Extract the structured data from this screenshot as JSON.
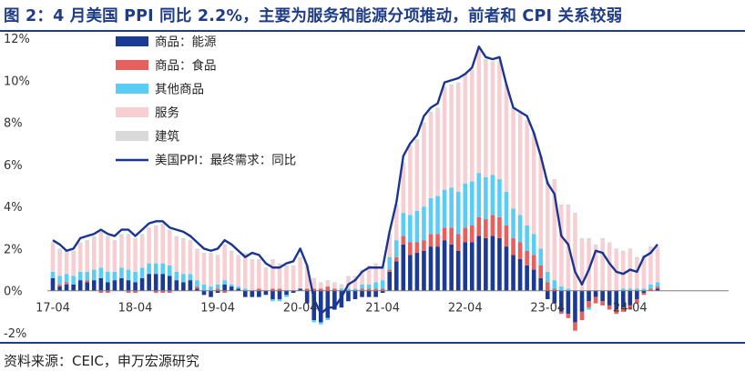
{
  "header": {
    "title": "图 2：4 月美国 PPI 同比 2.2%，主要为服务和能源分项推动，前者和 CPI 关系较弱"
  },
  "footer": {
    "source": "资料来源：CEIC，申万宏源研究"
  },
  "chart_data": {
    "type": "bar",
    "stacked": true,
    "title": "图 2：4 月美国 PPI 同比 2.2%，主要为服务和能源分项推动，前者和 CPI 关系较弱",
    "ylim": [
      -2,
      12
    ],
    "yticks": [
      "-2%",
      "0%",
      "2%",
      "4%",
      "6%",
      "8%",
      "10%",
      "12%"
    ],
    "yunit": "%",
    "xtick_labels": [
      "17-04",
      "18-04",
      "19-04",
      "20-04",
      "21-04",
      "22-04",
      "23-04",
      "24-04"
    ],
    "legend_position": "top-left",
    "colors": {
      "energy": "#1a3a96",
      "food": "#e8605e",
      "other_goods": "#5bcdf5",
      "services": "#f7cfd3",
      "construction": "#d9d9d9",
      "ppi_line": "#1a3491"
    },
    "series_names": {
      "energy": "商品：能源",
      "food": "商品：食品",
      "other_goods": "其他商品",
      "services": "服务",
      "construction": "建筑",
      "ppi": "美国PPI：最终需求：同比"
    },
    "series": [
      {
        "name": "美国PPI：最终需求：同比",
        "type": "line",
        "key": "ppi",
        "values": [
          2.4,
          2.2,
          1.9,
          2.0,
          2.5,
          2.6,
          2.7,
          2.9,
          2.7,
          2.6,
          2.9,
          2.9,
          2.6,
          2.9,
          3.2,
          3.3,
          3.3,
          3.0,
          2.9,
          2.8,
          2.6,
          2.3,
          2.0,
          1.9,
          2.0,
          2.4,
          2.2,
          1.9,
          1.6,
          1.8,
          1.7,
          1.3,
          1.1,
          1.1,
          1.3,
          1.4,
          2.0,
          1.2,
          -0.4,
          -1.1,
          -0.8,
          -0.8,
          -0.3,
          0.3,
          0.5,
          0.9,
          1.1,
          1.1,
          1.1,
          2.8,
          4.2,
          6.4,
          7.0,
          7.4,
          8.3,
          8.7,
          8.9,
          9.9,
          10.0,
          10.1,
          10.3,
          10.6,
          11.6,
          11.1,
          11.0,
          11.1,
          9.8,
          8.7,
          8.5,
          8.3,
          7.5,
          6.4,
          5.1,
          4.6,
          2.6,
          2.2,
          0.9,
          0.3,
          1.0,
          1.9,
          1.8,
          1.3,
          0.9,
          0.8,
          1.0,
          0.9,
          1.6,
          1.8,
          2.2
        ]
      },
      {
        "name": "商品：能源",
        "key": "energy",
        "values": [
          0.6,
          0.2,
          0.3,
          0.3,
          0.5,
          0.4,
          0.5,
          0.6,
          0.4,
          0.5,
          0.6,
          0.5,
          0.4,
          0.6,
          0.8,
          0.8,
          0.8,
          0.7,
          0.5,
          0.4,
          0.5,
          0.1,
          -0.2,
          -0.3,
          -0.1,
          0.3,
          0.2,
          0.1,
          -0.3,
          -0.3,
          -0.3,
          -0.2,
          -0.4,
          -0.4,
          -0.2,
          -0.1,
          0.1,
          -0.6,
          -1.4,
          -1.5,
          -1.3,
          -0.9,
          -0.8,
          -0.5,
          -0.4,
          -0.3,
          -0.3,
          -0.3,
          -0.1,
          0.9,
          1.4,
          2.2,
          1.7,
          1.8,
          1.9,
          2.1,
          2.1,
          2.4,
          2.2,
          1.9,
          2.3,
          2.3,
          2.6,
          2.5,
          2.6,
          2.5,
          2.1,
          1.7,
          1.5,
          1.2,
          1.0,
          0.6,
          -0.4,
          -0.6,
          -1.0,
          -1.1,
          -1.5,
          -1.0,
          -0.5,
          -0.3,
          -0.5,
          -0.7,
          -0.9,
          -0.8,
          -0.7,
          -0.4,
          -0.1,
          0.0,
          0.1
        ]
      },
      {
        "name": "商品：食品",
        "key": "food",
        "values": [
          0.0,
          0.1,
          0.1,
          0.0,
          0.0,
          0.1,
          0.0,
          -0.1,
          -0.1,
          0.0,
          0.0,
          -0.1,
          -0.1,
          0.0,
          0.0,
          -0.1,
          -0.1,
          -0.1,
          0.0,
          0.0,
          0.0,
          0.1,
          0.0,
          0.0,
          0.1,
          -0.1,
          0.0,
          0.0,
          0.0,
          0.0,
          0.1,
          0.0,
          0.1,
          0.1,
          0.0,
          0.0,
          0.0,
          0.1,
          0.1,
          0.1,
          0.2,
          0.1,
          0.0,
          0.0,
          0.0,
          0.1,
          0.1,
          0.1,
          0.1,
          0.1,
          0.2,
          0.4,
          0.6,
          0.5,
          0.5,
          0.6,
          0.6,
          0.6,
          0.8,
          0.8,
          0.7,
          0.8,
          0.9,
          0.9,
          1.0,
          1.0,
          1.0,
          0.8,
          0.8,
          0.7,
          0.7,
          0.6,
          0.4,
          0.1,
          -0.1,
          -0.2,
          -0.4,
          -0.4,
          -0.3,
          -0.3,
          -0.2,
          -0.2,
          -0.2,
          -0.2,
          -0.2,
          -0.2,
          -0.1,
          0.1,
          0.1
        ]
      },
      {
        "name": "其他商品",
        "key": "other_goods",
        "values": [
          0.3,
          0.4,
          0.4,
          0.4,
          0.4,
          0.4,
          0.5,
          0.5,
          0.5,
          0.4,
          0.5,
          0.5,
          0.5,
          0.5,
          0.5,
          0.5,
          0.5,
          0.5,
          0.4,
          0.4,
          0.3,
          0.3,
          0.3,
          0.2,
          0.2,
          0.2,
          0.1,
          0.1,
          0.1,
          0.0,
          0.0,
          0.0,
          -0.1,
          -0.1,
          -0.1,
          0.0,
          0.0,
          0.0,
          -0.1,
          -0.1,
          -0.1,
          0.0,
          0.1,
          0.1,
          0.1,
          0.2,
          0.2,
          0.3,
          0.4,
          0.6,
          0.8,
          1.1,
          1.3,
          1.5,
          1.6,
          1.7,
          1.8,
          1.8,
          1.9,
          2.0,
          2.1,
          2.1,
          2.1,
          2.0,
          1.9,
          1.8,
          1.6,
          1.4,
          1.3,
          1.2,
          1.0,
          0.8,
          0.5,
          0.4,
          0.2,
          0.1,
          0.0,
          0.0,
          -0.1,
          0.0,
          0.0,
          0.0,
          0.0,
          0.1,
          0.1,
          0.1,
          0.1,
          0.2,
          0.2
        ]
      },
      {
        "name": "服务",
        "key": "services",
        "values": [
          1.3,
          1.2,
          1.0,
          1.1,
          1.3,
          1.4,
          1.5,
          1.6,
          1.6,
          1.4,
          1.5,
          1.6,
          1.5,
          1.5,
          1.6,
          1.7,
          1.8,
          1.6,
          1.6,
          1.6,
          1.5,
          1.4,
          1.4,
          1.5,
          1.3,
          1.6,
          1.5,
          1.4,
          1.6,
          1.4,
          1.3,
          1.0,
          1.3,
          1.1,
          1.1,
          1.1,
          1.4,
          1.0,
          0.4,
          0.2,
          0.2,
          0.2,
          0.1,
          0.5,
          0.5,
          0.6,
          0.8,
          0.8,
          0.5,
          1.0,
          1.6,
          2.3,
          3.2,
          3.3,
          3.9,
          4.0,
          4.1,
          4.8,
          4.8,
          5.1,
          5.1,
          5.2,
          5.8,
          5.5,
          5.3,
          5.5,
          5.0,
          4.7,
          4.8,
          4.9,
          4.7,
          4.3,
          4.2,
          4.7,
          3.8,
          3.9,
          3.6,
          2.4,
          2.4,
          2.1,
          2.4,
          2.2,
          1.9,
          1.7,
          1.8,
          1.4,
          1.5,
          1.7,
          1.6
        ]
      },
      {
        "name": "建筑",
        "key": "construction",
        "values": [
          0.1,
          0.1,
          0.1,
          0.1,
          0.1,
          0.1,
          0.1,
          0.1,
          0.1,
          0.1,
          0.1,
          0.1,
          0.1,
          0.1,
          0.1,
          0.1,
          0.1,
          0.1,
          0.1,
          0.1,
          0.1,
          0.1,
          0.1,
          0.1,
          0.1,
          0.1,
          0.1,
          0.1,
          0.1,
          0.1,
          0.1,
          0.1,
          0.1,
          0.1,
          0.1,
          0.1,
          0.1,
          0.1,
          0.1,
          0.1,
          0.1,
          0.1,
          0.1,
          0.1,
          0.1,
          0.1,
          0.1,
          0.1,
          0.1,
          0.1,
          0.1,
          0.1,
          0.1,
          0.1,
          0.1,
          0.1,
          0.1,
          0.1,
          0.1,
          0.1,
          0.1,
          0.1,
          0.1,
          0.1,
          0.1,
          0.1,
          0.1,
          0.1,
          0.1,
          0.1,
          0.1,
          0.1,
          0.1,
          0.1,
          0.1,
          0.1,
          0.1,
          0.1,
          0.1,
          0.1,
          0.1,
          0.1,
          0.1,
          0.1,
          0.1,
          0.1,
          0.1,
          0.1,
          0.1
        ]
      }
    ]
  }
}
